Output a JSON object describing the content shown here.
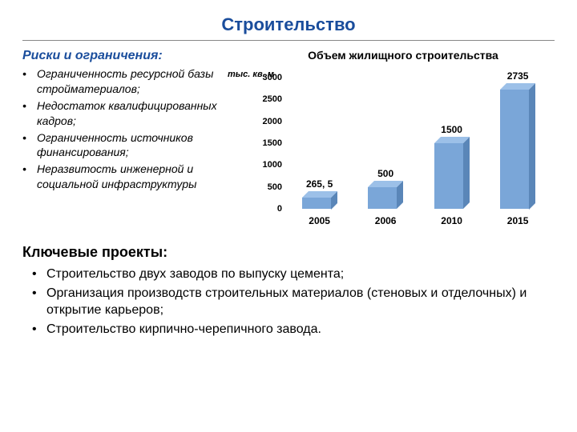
{
  "title": "Строительство",
  "risks": {
    "heading": "Риски и ограничения:",
    "items": [
      "Ограниченность ресурсной базы стройматериалов;",
      "Недостаток квалифицированных кадров;",
      "Ограниченность источников финансирования;",
      "Неразвитость инженерной и социальной инфраструктуры"
    ]
  },
  "chart": {
    "type": "bar",
    "title": "Объем жилищного строительства",
    "ylabel": "тыс. кв. м",
    "ylim_max": 3000,
    "yticks": [
      0,
      500,
      1000,
      1500,
      2000,
      2500,
      3000
    ],
    "categories": [
      "2005",
      "2006",
      "2010",
      "2015"
    ],
    "values": [
      265.5,
      500,
      1500,
      2735
    ],
    "value_labels": [
      "265, 5",
      "500",
      "1500",
      "2735"
    ],
    "bar_front_color": "#7aa6d8",
    "bar_side_color": "#5a86b8",
    "bar_top_color": "#9cc0e8",
    "background_color": "#ffffff",
    "text_color": "#000000"
  },
  "key_projects": {
    "heading": "Ключевые проекты:",
    "items": [
      "Строительство двух заводов по выпуску цемента;",
      "Организация производств строительных материалов (стеновых и отделочных) и открытие карьеров;",
      "Строительство кирпично-черепичного завода."
    ]
  }
}
